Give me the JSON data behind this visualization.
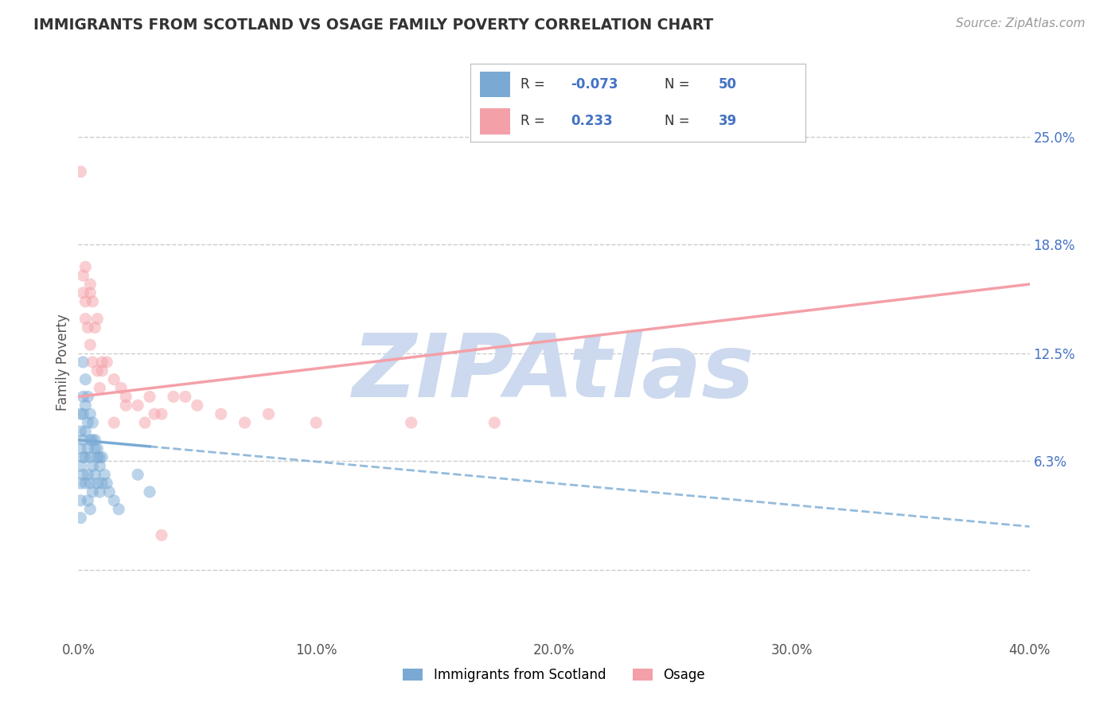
{
  "title": "IMMIGRANTS FROM SCOTLAND VS OSAGE FAMILY POVERTY CORRELATION CHART",
  "source_text": "Source: ZipAtlas.com",
  "ylabel": "Family Poverty",
  "xlim": [
    0.0,
    0.4
  ],
  "ylim": [
    -0.04,
    0.28
  ],
  "xticks": [
    0.0,
    0.1,
    0.2,
    0.3,
    0.4
  ],
  "xticklabels": [
    "0.0%",
    "10.0%",
    "20.0%",
    "30.0%",
    "40.0%"
  ],
  "ytick_positions": [
    0.0,
    0.063,
    0.125,
    0.188,
    0.25
  ],
  "yticklabels_right": [
    "",
    "6.3%",
    "12.5%",
    "18.8%",
    "25.0%"
  ],
  "grid_color": "#cccccc",
  "background_color": "#ffffff",
  "watermark": "ZIPAtlas",
  "watermark_color": "#ccd9ee",
  "scotland_color": "#7aaad4",
  "osage_color": "#f4a0a8",
  "scotland_R": -0.073,
  "scotland_N": 50,
  "osage_R": 0.233,
  "osage_N": 39,
  "legend_label_scotland": "Immigrants from Scotland",
  "legend_label_osage": "Osage",
  "scotland_points_x": [
    0.001,
    0.001,
    0.001,
    0.001,
    0.001,
    0.001,
    0.001,
    0.002,
    0.002,
    0.002,
    0.002,
    0.002,
    0.003,
    0.003,
    0.003,
    0.003,
    0.004,
    0.004,
    0.004,
    0.004,
    0.005,
    0.005,
    0.005,
    0.005,
    0.006,
    0.006,
    0.006,
    0.007,
    0.007,
    0.008,
    0.008,
    0.009,
    0.009,
    0.01,
    0.01,
    0.011,
    0.012,
    0.013,
    0.015,
    0.017,
    0.002,
    0.003,
    0.004,
    0.005,
    0.006,
    0.007,
    0.008,
    0.009,
    0.025,
    0.03
  ],
  "scotland_points_y": [
    0.08,
    0.09,
    0.06,
    0.07,
    0.05,
    0.04,
    0.03,
    0.1,
    0.09,
    0.075,
    0.065,
    0.055,
    0.095,
    0.08,
    0.065,
    0.05,
    0.085,
    0.07,
    0.055,
    0.04,
    0.075,
    0.065,
    0.05,
    0.035,
    0.075,
    0.06,
    0.045,
    0.07,
    0.055,
    0.065,
    0.05,
    0.06,
    0.045,
    0.065,
    0.05,
    0.055,
    0.05,
    0.045,
    0.04,
    0.035,
    0.12,
    0.11,
    0.1,
    0.09,
    0.085,
    0.075,
    0.07,
    0.065,
    0.055,
    0.045
  ],
  "osage_points_x": [
    0.001,
    0.002,
    0.002,
    0.003,
    0.003,
    0.004,
    0.005,
    0.005,
    0.006,
    0.006,
    0.007,
    0.008,
    0.008,
    0.009,
    0.01,
    0.012,
    0.015,
    0.018,
    0.02,
    0.025,
    0.028,
    0.032,
    0.035,
    0.04,
    0.045,
    0.05,
    0.06,
    0.07,
    0.08,
    0.1,
    0.003,
    0.005,
    0.01,
    0.015,
    0.14,
    0.175,
    0.02,
    0.03,
    0.035
  ],
  "osage_points_y": [
    0.23,
    0.17,
    0.16,
    0.155,
    0.145,
    0.14,
    0.16,
    0.13,
    0.155,
    0.12,
    0.14,
    0.145,
    0.115,
    0.105,
    0.12,
    0.12,
    0.11,
    0.105,
    0.1,
    0.095,
    0.085,
    0.09,
    0.09,
    0.1,
    0.1,
    0.095,
    0.09,
    0.085,
    0.09,
    0.085,
    0.175,
    0.165,
    0.115,
    0.085,
    0.085,
    0.085,
    0.095,
    0.1,
    0.02
  ],
  "scotland_trendline_x": [
    0.0,
    0.4
  ],
  "scotland_trendline_y_start": 0.075,
  "scotland_trendline_y_end": 0.025,
  "osage_trendline_x": [
    0.0,
    0.4
  ],
  "osage_trendline_y_start": 0.1,
  "osage_trendline_y_end": 0.165
}
